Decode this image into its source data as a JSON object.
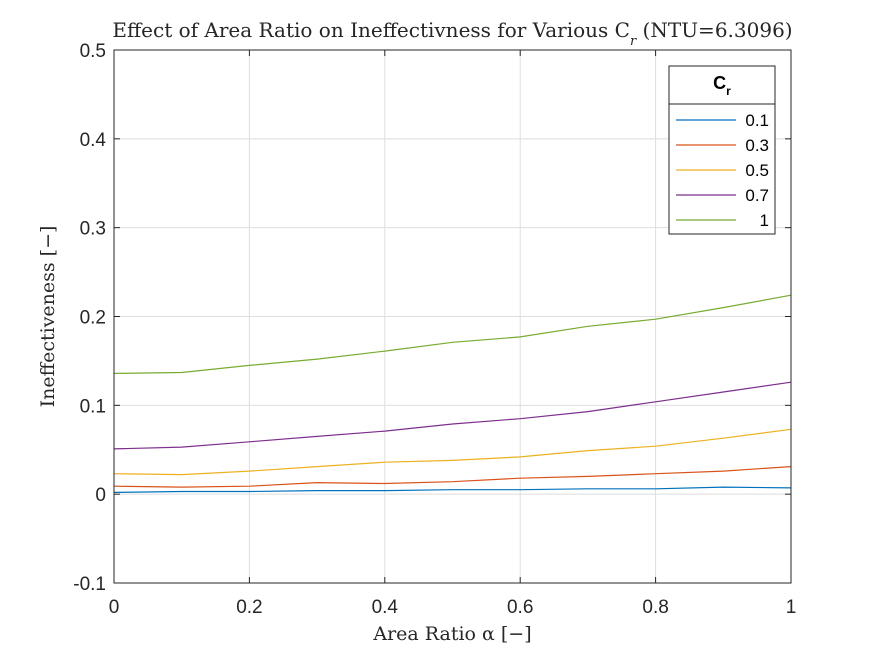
{
  "chart_data": {
    "type": "line",
    "title": "Effect of Area Ratio on Ineffectivness for Various C",
    "title_subscript": "r",
    "title_suffix": " (NTU=6.3096)",
    "xlabel": "Area Ratio α [−]",
    "ylabel": "Ineffectiveness [−]",
    "xlim": [
      0,
      1
    ],
    "ylim": [
      -0.1,
      0.5
    ],
    "xticks": [
      0,
      0.2,
      0.4,
      0.6,
      0.8,
      1
    ],
    "xtick_labels": [
      "0",
      "0.2",
      "0.4",
      "0.6",
      "0.8",
      "1"
    ],
    "yticks": [
      -0.1,
      0,
      0.1,
      0.2,
      0.3,
      0.4,
      0.5
    ],
    "ytick_labels": [
      "-0.1",
      "0",
      "0.1",
      "0.2",
      "0.3",
      "0.4",
      "0.5"
    ],
    "grid": true,
    "legend_position": "top-right",
    "legend_title": "C",
    "legend_title_subscript": "r",
    "x": [
      0,
      0.1,
      0.2,
      0.3,
      0.4,
      0.5,
      0.6,
      0.7,
      0.8,
      0.9,
      1.0
    ],
    "series": [
      {
        "name": "0.1",
        "color": "#0072BD",
        "values": [
          0.002,
          0.003,
          0.003,
          0.004,
          0.004,
          0.005,
          0.005,
          0.006,
          0.006,
          0.008,
          0.007
        ]
      },
      {
        "name": "0.3",
        "color": "#D95319",
        "values": [
          0.009,
          0.008,
          0.009,
          0.013,
          0.012,
          0.014,
          0.018,
          0.02,
          0.023,
          0.026,
          0.031
        ]
      },
      {
        "name": "0.5",
        "color": "#EDB120",
        "values": [
          0.023,
          0.022,
          0.026,
          0.031,
          0.036,
          0.038,
          0.042,
          0.049,
          0.054,
          0.063,
          0.073
        ]
      },
      {
        "name": "0.7",
        "color": "#7E2F8E",
        "values": [
          0.051,
          0.053,
          0.059,
          0.065,
          0.071,
          0.079,
          0.085,
          0.093,
          0.104,
          0.115,
          0.126
        ]
      },
      {
        "name": "1",
        "color": "#77AC30",
        "values": [
          0.136,
          0.137,
          0.145,
          0.152,
          0.161,
          0.171,
          0.177,
          0.189,
          0.197,
          0.21,
          0.224
        ]
      }
    ]
  }
}
